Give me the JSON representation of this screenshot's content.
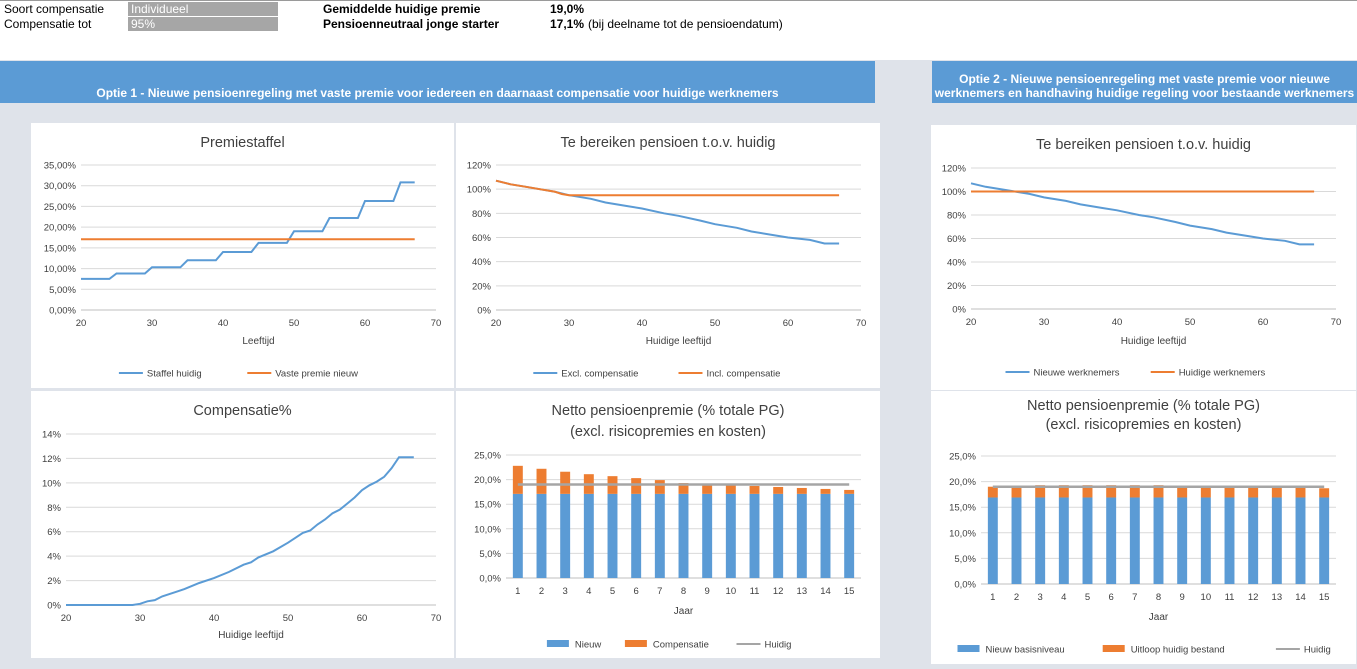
{
  "header": {
    "soort_label": "Soort compensatie",
    "soort_value": "Individueel",
    "comp_label": "Compensatie tot",
    "comp_value": "95%",
    "gem_label": "Gemiddelde huidige premie",
    "gem_value": "19,0%",
    "neutraal_label": "Pensioenneutraal jonge starter",
    "neutraal_value": "17,1%",
    "neutraal_note": "(bij deelname tot de pensioendatum)"
  },
  "optie1": {
    "title": "Optie 1 - Nieuwe pensioenregeling met vaste premie voor iedereen en daarnaast compensatie voor huidige werknemers"
  },
  "optie2": {
    "title_line1": "Optie 2 - Nieuwe pensioenregeling met vaste premie voor nieuwe",
    "title_line2": "werknemers en handhaving huidige regeling voor bestaande werknemers"
  },
  "colors": {
    "blue": "#5b9bd5",
    "orange": "#ed7d31",
    "gray": "#a5a5a5",
    "banner": "#5b9bd5"
  },
  "chart_data": [
    {
      "id": "premiestaffel",
      "type": "line",
      "title": "Premiestaffel",
      "xlabel": "Leeftijd",
      "ylabel": "",
      "xlim": [
        20,
        70
      ],
      "ylim": [
        0,
        0.35
      ],
      "xticks": [
        "20",
        "30",
        "40",
        "50",
        "60",
        "70"
      ],
      "yticks": [
        "0,00%",
        "5,00%",
        "10,00%",
        "15,00%",
        "20,00%",
        "25,00%",
        "30,00%",
        "35,00%"
      ],
      "legend": "bottom",
      "series": [
        {
          "name": "Staffel huidig",
          "color": "#5b9bd5",
          "points": [
            [
              20,
              0.075
            ],
            [
              24,
              0.075
            ],
            [
              25,
              0.088
            ],
            [
              29,
              0.088
            ],
            [
              30,
              0.103
            ],
            [
              34,
              0.103
            ],
            [
              35,
              0.12
            ],
            [
              39,
              0.12
            ],
            [
              40,
              0.14
            ],
            [
              44,
              0.14
            ],
            [
              45,
              0.162
            ],
            [
              49,
              0.162
            ],
            [
              50,
              0.19
            ],
            [
              54,
              0.19
            ],
            [
              55,
              0.222
            ],
            [
              59,
              0.222
            ],
            [
              60,
              0.263
            ],
            [
              64,
              0.263
            ],
            [
              65,
              0.308
            ],
            [
              67,
              0.308
            ]
          ]
        },
        {
          "name": "Vaste premie nieuw",
          "color": "#ed7d31",
          "points": [
            [
              20,
              0.171
            ],
            [
              67,
              0.171
            ]
          ]
        }
      ]
    },
    {
      "id": "bereiken1",
      "type": "line",
      "title": "Te bereiken pensioen t.o.v. huidig",
      "xlabel": "Huidige leeftijd",
      "ylabel": "",
      "xlim": [
        20,
        70
      ],
      "ylim": [
        0,
        1.2
      ],
      "xticks": [
        "20",
        "30",
        "40",
        "50",
        "60",
        "70"
      ],
      "yticks": [
        "0%",
        "20%",
        "40%",
        "60%",
        "80%",
        "100%",
        "120%"
      ],
      "legend": "bottom",
      "series": [
        {
          "name": "Excl. compensatie",
          "color": "#5b9bd5",
          "points": [
            [
              20,
              1.07
            ],
            [
              22,
              1.04
            ],
            [
              24,
              1.02
            ],
            [
              26,
              1.0
            ],
            [
              28,
              0.98
            ],
            [
              30,
              0.95
            ],
            [
              33,
              0.92
            ],
            [
              35,
              0.89
            ],
            [
              38,
              0.86
            ],
            [
              40,
              0.84
            ],
            [
              43,
              0.8
            ],
            [
              45,
              0.78
            ],
            [
              48,
              0.74
            ],
            [
              50,
              0.71
            ],
            [
              53,
              0.68
            ],
            [
              55,
              0.65
            ],
            [
              58,
              0.62
            ],
            [
              60,
              0.6
            ],
            [
              63,
              0.58
            ],
            [
              65,
              0.55
            ],
            [
              67,
              0.55
            ]
          ]
        },
        {
          "name": "Incl. compensatie",
          "color": "#ed7d31",
          "points": [
            [
              20,
              1.07
            ],
            [
              22,
              1.04
            ],
            [
              24,
              1.02
            ],
            [
              26,
              1.0
            ],
            [
              28,
              0.98
            ],
            [
              29,
              0.96
            ],
            [
              30,
              0.95
            ],
            [
              67,
              0.95
            ]
          ]
        }
      ]
    },
    {
      "id": "bereiken2",
      "type": "line",
      "title": "Te bereiken pensioen t.o.v. huidig",
      "xlabel": "Huidige leeftijd",
      "ylabel": "",
      "xlim": [
        20,
        70
      ],
      "ylim": [
        0,
        1.2
      ],
      "xticks": [
        "20",
        "30",
        "40",
        "50",
        "60",
        "70"
      ],
      "yticks": [
        "0%",
        "20%",
        "40%",
        "60%",
        "80%",
        "100%",
        "120%"
      ],
      "legend": "bottom",
      "series": [
        {
          "name": "Nieuwe werknemers",
          "color": "#5b9bd5",
          "points": [
            [
              20,
              1.07
            ],
            [
              22,
              1.04
            ],
            [
              24,
              1.02
            ],
            [
              26,
              1.0
            ],
            [
              28,
              0.98
            ],
            [
              30,
              0.95
            ],
            [
              33,
              0.92
            ],
            [
              35,
              0.89
            ],
            [
              38,
              0.86
            ],
            [
              40,
              0.84
            ],
            [
              43,
              0.8
            ],
            [
              45,
              0.78
            ],
            [
              48,
              0.74
            ],
            [
              50,
              0.71
            ],
            [
              53,
              0.68
            ],
            [
              55,
              0.65
            ],
            [
              58,
              0.62
            ],
            [
              60,
              0.6
            ],
            [
              63,
              0.58
            ],
            [
              65,
              0.55
            ],
            [
              67,
              0.55
            ]
          ]
        },
        {
          "name": "Huidige werknemers",
          "color": "#ed7d31",
          "points": [
            [
              20,
              1.0
            ],
            [
              67,
              1.0
            ]
          ]
        }
      ]
    },
    {
      "id": "compensatie",
      "type": "line",
      "title": "Compensatie%",
      "xlabel": "Huidige leeftijd",
      "ylabel": "",
      "xlim": [
        20,
        70
      ],
      "ylim": [
        0,
        0.14
      ],
      "xticks": [
        "20",
        "30",
        "40",
        "50",
        "60",
        "70"
      ],
      "yticks": [
        "0%",
        "2%",
        "4%",
        "6%",
        "8%",
        "10%",
        "12%",
        "14%"
      ],
      "legend": "none",
      "series": [
        {
          "name": "",
          "color": "#5b9bd5",
          "points": [
            [
              20,
              0.0
            ],
            [
              29,
              0.0
            ],
            [
              30,
              0.001
            ],
            [
              31,
              0.003
            ],
            [
              32,
              0.004
            ],
            [
              33,
              0.007
            ],
            [
              35,
              0.011
            ],
            [
              36,
              0.013
            ],
            [
              38,
              0.018
            ],
            [
              40,
              0.022
            ],
            [
              42,
              0.027
            ],
            [
              44,
              0.033
            ],
            [
              45,
              0.035
            ],
            [
              46,
              0.039
            ],
            [
              48,
              0.044
            ],
            [
              50,
              0.051
            ],
            [
              51,
              0.055
            ],
            [
              52,
              0.059
            ],
            [
              53,
              0.061
            ],
            [
              54,
              0.066
            ],
            [
              55,
              0.07
            ],
            [
              56,
              0.075
            ],
            [
              57,
              0.078
            ],
            [
              58,
              0.083
            ],
            [
              59,
              0.088
            ],
            [
              60,
              0.094
            ],
            [
              61,
              0.098
            ],
            [
              62,
              0.101
            ],
            [
              63,
              0.105
            ],
            [
              64,
              0.112
            ],
            [
              65,
              0.121
            ],
            [
              67,
              0.121
            ]
          ]
        }
      ]
    },
    {
      "id": "netto1",
      "type": "bar",
      "title": "Netto pensioenpremie (% totale PG)",
      "subtitle": "(excl. risicopremies en kosten)",
      "xlabel": "Jaar",
      "ylabel": "",
      "ylim": [
        0,
        0.25
      ],
      "yticks": [
        "0,0%",
        "5,0%",
        "10,0%",
        "15,0%",
        "20,0%",
        "25,0%"
      ],
      "categories": [
        "1",
        "2",
        "3",
        "4",
        "5",
        "6",
        "7",
        "8",
        "9",
        "10",
        "11",
        "12",
        "13",
        "14",
        "15"
      ],
      "legend": "bottom",
      "series": [
        {
          "name": "Nieuw",
          "color": "#5b9bd5",
          "values": [
            0.171,
            0.171,
            0.171,
            0.171,
            0.171,
            0.171,
            0.171,
            0.171,
            0.171,
            0.171,
            0.171,
            0.171,
            0.171,
            0.171,
            0.171
          ]
        },
        {
          "name": "Compensatie",
          "color": "#ed7d31",
          "values": [
            0.057,
            0.051,
            0.045,
            0.04,
            0.036,
            0.032,
            0.028,
            0.022,
            0.02,
            0.018,
            0.016,
            0.014,
            0.012,
            0.01,
            0.008
          ]
        },
        {
          "name": "Huidig",
          "color": "#a5a5a5",
          "type": "line",
          "values": [
            0.19,
            0.19,
            0.19,
            0.19,
            0.19,
            0.19,
            0.19,
            0.19,
            0.19,
            0.19,
            0.19,
            0.19,
            0.19,
            0.19,
            0.19
          ]
        }
      ]
    },
    {
      "id": "netto2",
      "type": "bar",
      "title": "Netto pensioenpremie (% totale PG)",
      "subtitle": "(excl. risicopremies en kosten)",
      "xlabel": "Jaar",
      "ylabel": "",
      "ylim": [
        0,
        0.25
      ],
      "yticks": [
        "0,0%",
        "5,0%",
        "10,0%",
        "15,0%",
        "20,0%",
        "25,0%"
      ],
      "categories": [
        "1",
        "2",
        "3",
        "4",
        "5",
        "6",
        "7",
        "8",
        "9",
        "10",
        "11",
        "12",
        "13",
        "14",
        "15"
      ],
      "legend": "bottom",
      "series": [
        {
          "name": "Nieuw basisniveau",
          "color": "#5b9bd5",
          "values": [
            0.169,
            0.169,
            0.169,
            0.169,
            0.169,
            0.169,
            0.169,
            0.169,
            0.169,
            0.169,
            0.169,
            0.169,
            0.169,
            0.169,
            0.169
          ]
        },
        {
          "name": "Uitloop huidig bestand",
          "color": "#ed7d31",
          "values": [
            0.021,
            0.021,
            0.024,
            0.024,
            0.024,
            0.024,
            0.024,
            0.024,
            0.021,
            0.021,
            0.021,
            0.021,
            0.021,
            0.021,
            0.018
          ]
        },
        {
          "name": "Huidig",
          "color": "#a5a5a5",
          "type": "line",
          "values": [
            0.19,
            0.19,
            0.19,
            0.19,
            0.19,
            0.19,
            0.19,
            0.19,
            0.19,
            0.19,
            0.19,
            0.19,
            0.19,
            0.19,
            0.19
          ]
        }
      ]
    }
  ]
}
